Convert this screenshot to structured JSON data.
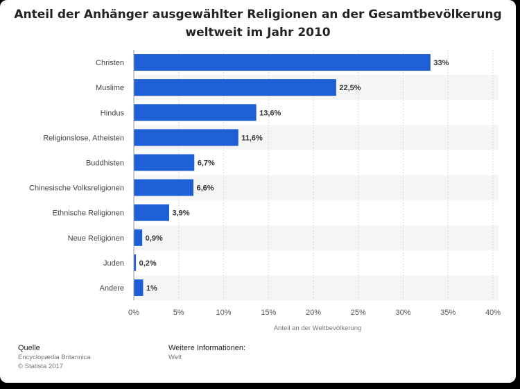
{
  "title_line1": "Anteil der Anhänger ausgewählter Religionen an der Gesamtbevölkerung",
  "title_line2": "weltweit im Jahr 2010",
  "chart_data": {
    "type": "bar",
    "orientation": "horizontal",
    "categories": [
      "Christen",
      "Muslime",
      "Hindus",
      "Religionslose, Atheisten",
      "Buddhisten",
      "Chinesische Volksreligionen",
      "Ethnische Religionen",
      "Neue Religionen",
      "Juden",
      "Andere"
    ],
    "values": [
      33,
      22.5,
      13.6,
      11.6,
      6.7,
      6.6,
      3.9,
      0.9,
      0.2,
      1
    ],
    "value_labels": [
      "33%",
      "22,5%",
      "13,6%",
      "11,6%",
      "6,7%",
      "6,6%",
      "3,9%",
      "0,9%",
      "0,2%",
      "1%"
    ],
    "xlim": [
      0,
      40
    ],
    "xticks": [
      "0%",
      "5%",
      "10%",
      "15%",
      "20%",
      "25%",
      "30%",
      "35%",
      "40%"
    ],
    "xlabel": "Anteil an der Weltbevölkerung",
    "ylabel": "",
    "grid": true,
    "bar_color": "#1f5fd6"
  },
  "footer": {
    "source_heading": "Quelle",
    "source_name": "Encyclopædia Britannica",
    "copyright": "© Statista 2017",
    "more_heading": "Weitere Informationen:",
    "more_value": "Welt"
  }
}
